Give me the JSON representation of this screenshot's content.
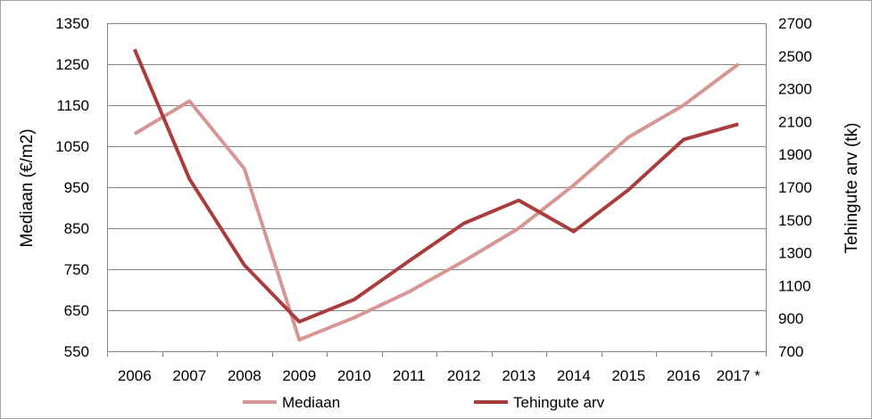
{
  "chart_data": {
    "type": "line",
    "categories": [
      "2006",
      "2007",
      "2008",
      "2009",
      "2010",
      "2011",
      "2012",
      "2013",
      "2014",
      "2015",
      "2016",
      "2017 *"
    ],
    "series": [
      {
        "name": "Mediaan",
        "axis": "left",
        "color": "#d69694",
        "values": [
          1080,
          1160,
          995,
          578,
          632,
          695,
          770,
          850,
          955,
          1072,
          1150,
          1250
        ]
      },
      {
        "name": "Tehingute arv",
        "axis": "right",
        "color": "#a93c3c",
        "values": [
          2540,
          1750,
          1225,
          880,
          1015,
          1250,
          1480,
          1620,
          1430,
          1685,
          1990,
          2085
        ]
      }
    ],
    "y_left": {
      "label": "Mediaan (€/m2)",
      "range": [
        550,
        1350
      ],
      "ticks": [
        "550",
        "650",
        "750",
        "850",
        "950",
        "1050",
        "1150",
        "1250",
        "1350"
      ]
    },
    "y_right": {
      "label": "Tehingute arv (tk)",
      "range": [
        700,
        2700
      ],
      "ticks": [
        "700",
        "900",
        "1100",
        "1300",
        "1500",
        "1700",
        "1900",
        "2100",
        "2300",
        "2500",
        "2700"
      ]
    },
    "grid": true,
    "legend_position": "bottom"
  }
}
